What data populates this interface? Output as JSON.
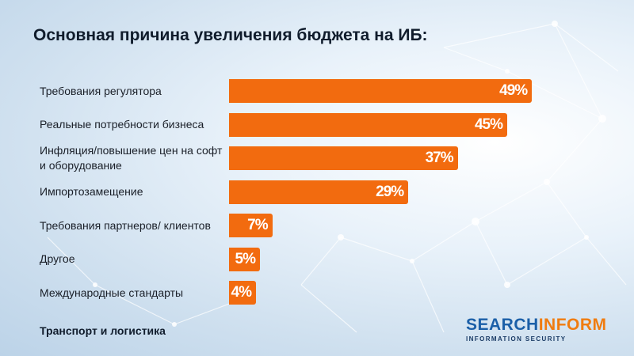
{
  "page": {
    "title": "Основная причина увеличения бюджета на ИБ:",
    "footer": "Транспорт и логистика",
    "logo": {
      "part1": "SEARCH",
      "part2": "INFORM",
      "tagline": "INFORMATION SECURITY"
    }
  },
  "colors": {
    "bar": "#f26b0f",
    "logo_blue": "#1b5fa8",
    "logo_orange": "#f07c10"
  },
  "chart_data": {
    "type": "bar",
    "orientation": "horizontal",
    "title": "Основная причина увеличения бюджета на ИБ:",
    "categories": [
      "Требования регулятора",
      "Реальные потребности бизнеса",
      "Инфляция/повышение цен на софт и оборудование",
      "Импортозамещение",
      "Требования партнеров/ клиентов",
      "Другое",
      "Международные стандарты"
    ],
    "values": [
      49,
      45,
      37,
      29,
      7,
      5,
      4
    ],
    "value_labels": [
      "49%",
      "45%",
      "37%",
      "29%",
      "7%",
      "5%",
      "4%"
    ],
    "xlim": [
      0,
      100
    ],
    "grid": false,
    "legend": "none"
  }
}
